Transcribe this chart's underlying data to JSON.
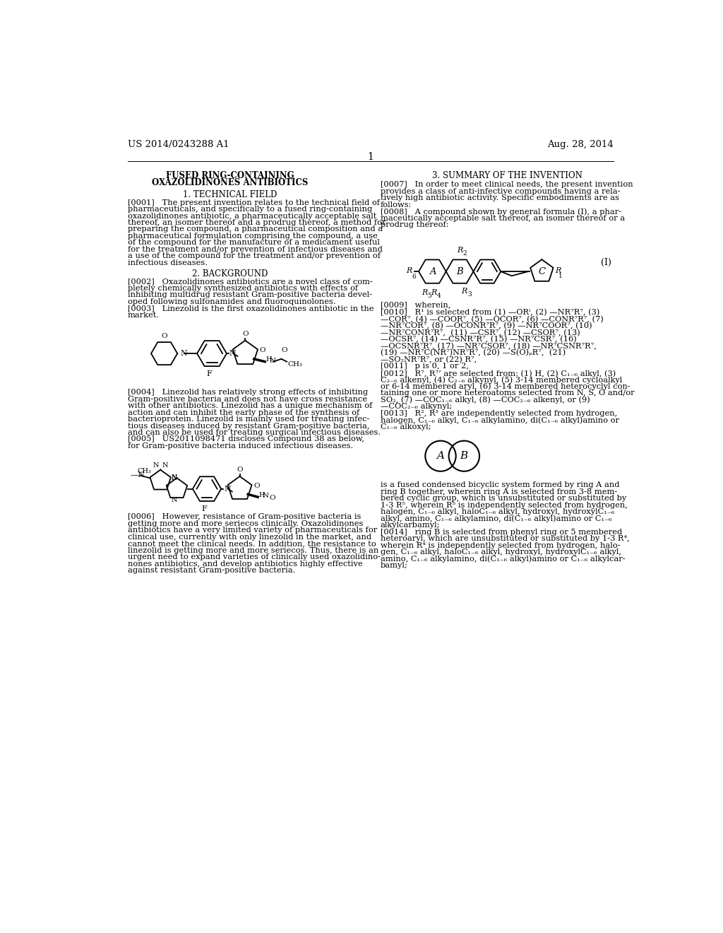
{
  "bg_color": "#ffffff",
  "header_left": "US 2014/0243288 A1",
  "header_right": "Aug. 28, 2014",
  "page_number": "1"
}
